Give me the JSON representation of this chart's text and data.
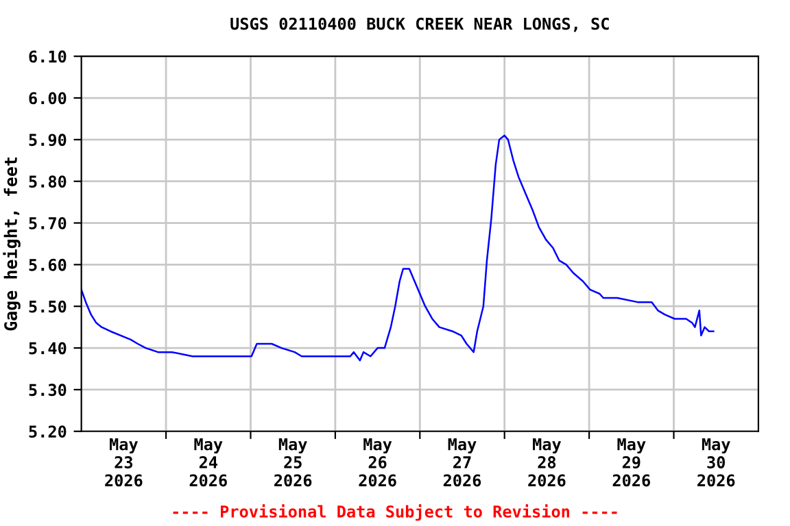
{
  "chart_data": {
    "type": "line",
    "title": "USGS 02110400 BUCK CREEK NEAR LONGS, SC",
    "ylabel": "Gage height, feet",
    "annotations": [
      "---- Provisional Data Subject to Revision ----"
    ],
    "x": [
      "2026-05-23T00:00",
      "2026-05-23T01:15",
      "2026-05-23T02:45",
      "2026-05-23T04:15",
      "2026-05-23T05:45",
      "2026-05-23T08:15",
      "2026-05-23T14:00",
      "2026-05-23T16:00",
      "2026-05-23T18:15",
      "2026-05-23T21:45",
      "2026-05-24T01:45",
      "2026-05-24T07:30",
      "2026-05-24T11:30",
      "2026-05-24T15:15",
      "2026-05-24T19:00",
      "2026-05-25T00:15",
      "2026-05-25T01:45",
      "2026-05-25T03:45",
      "2026-05-25T06:00",
      "2026-05-25T08:45",
      "2026-05-25T12:30",
      "2026-05-25T14:30",
      "2026-05-25T18:30",
      "2026-05-26T00:15",
      "2026-05-26T02:15",
      "2026-05-26T04:15",
      "2026-05-26T05:15",
      "2026-05-26T07:00",
      "2026-05-26T08:00",
      "2026-05-26T10:00",
      "2026-05-26T12:00",
      "2026-05-26T14:00",
      "2026-05-26T15:45",
      "2026-05-26T17:00",
      "2026-05-26T18:15",
      "2026-05-26T19:15",
      "2026-05-26T21:00",
      "2026-05-26T22:30",
      "2026-05-27T00:00",
      "2026-05-27T01:30",
      "2026-05-27T03:30",
      "2026-05-27T05:30",
      "2026-05-27T09:15",
      "2026-05-27T11:45",
      "2026-05-27T13:15",
      "2026-05-27T15:15",
      "2026-05-27T16:15",
      "2026-05-27T18:00",
      "2026-05-27T19:00",
      "2026-05-27T20:15",
      "2026-05-27T21:30",
      "2026-05-27T22:30",
      "2026-05-28T00:00",
      "2026-05-28T01:00",
      "2026-05-28T02:30",
      "2026-05-28T04:00",
      "2026-05-28T06:00",
      "2026-05-28T08:00",
      "2026-05-28T09:45",
      "2026-05-28T11:45",
      "2026-05-28T13:45",
      "2026-05-28T15:30",
      "2026-05-28T17:30",
      "2026-05-28T19:30",
      "2026-05-28T22:15",
      "2026-05-29T00:15",
      "2026-05-29T03:00",
      "2026-05-29T04:00",
      "2026-05-29T08:00",
      "2026-05-29T13:45",
      "2026-05-29T17:45",
      "2026-05-29T19:30",
      "2026-05-29T21:30",
      "2026-05-30T00:15",
      "2026-05-30T03:30",
      "2026-05-30T05:15",
      "2026-05-30T06:00",
      "2026-05-30T07:15",
      "2026-05-30T07:45",
      "2026-05-30T08:45",
      "2026-05-30T10:00",
      "2026-05-30T11:15"
    ],
    "series": [
      {
        "color": "#0000ff",
        "values": [
          5.54,
          5.51,
          5.48,
          5.46,
          5.45,
          5.44,
          5.42,
          5.41,
          5.4,
          5.39,
          5.39,
          5.38,
          5.38,
          5.38,
          5.38,
          5.38,
          5.41,
          5.41,
          5.41,
          5.4,
          5.39,
          5.38,
          5.38,
          5.38,
          5.38,
          5.38,
          5.39,
          5.37,
          5.39,
          5.38,
          5.4,
          5.4,
          5.45,
          5.5,
          5.56,
          5.59,
          5.59,
          5.56,
          5.53,
          5.5,
          5.47,
          5.45,
          5.44,
          5.43,
          5.41,
          5.39,
          5.44,
          5.5,
          5.61,
          5.71,
          5.84,
          5.9,
          5.91,
          5.9,
          5.85,
          5.81,
          5.77,
          5.73,
          5.69,
          5.66,
          5.64,
          5.61,
          5.6,
          5.58,
          5.56,
          5.54,
          5.53,
          5.52,
          5.52,
          5.51,
          5.51,
          5.49,
          5.48,
          5.47,
          5.47,
          5.46,
          5.45,
          5.49,
          5.43,
          5.45,
          5.44,
          5.44
        ]
      }
    ],
    "xlim": [
      "2026-05-23T00:00",
      "2026-05-31T00:00"
    ],
    "xticks": [
      {
        "value": "2026-05-23T12:00",
        "label": "May\n23\n2026"
      },
      {
        "value": "2026-05-24T12:00",
        "label": "May\n24\n2026"
      },
      {
        "value": "2026-05-25T12:00",
        "label": "May\n25\n2026"
      },
      {
        "value": "2026-05-26T12:00",
        "label": "May\n26\n2026"
      },
      {
        "value": "2026-05-27T12:00",
        "label": "May\n27\n2026"
      },
      {
        "value": "2026-05-28T12:00",
        "label": "May\n28\n2026"
      },
      {
        "value": "2026-05-29T12:00",
        "label": "May\n29\n2026"
      },
      {
        "value": "2026-05-30T12:00",
        "label": "May\n30\n2026"
      },
      {
        "value": "2026-05-24T00:00",
        "label": null
      },
      {
        "value": "2026-05-25T00:00",
        "label": null
      },
      {
        "value": "2026-05-26T00:00",
        "label": null
      },
      {
        "value": "2026-05-27T00:00",
        "label": null
      },
      {
        "value": "2026-05-28T00:00",
        "label": null
      },
      {
        "value": "2026-05-29T00:00",
        "label": null
      },
      {
        "value": "2026-05-30T00:00",
        "label": null
      }
    ],
    "ylim": [
      5.2,
      6.1
    ],
    "yticks": [
      {
        "value": 5.2,
        "label": "5.20"
      },
      {
        "value": 5.3,
        "label": "5.30"
      },
      {
        "value": 5.4,
        "label": "5.40"
      },
      {
        "value": 5.5,
        "label": "5.50"
      },
      {
        "value": 5.6,
        "label": "5.60"
      },
      {
        "value": 5.7,
        "label": "5.70"
      },
      {
        "value": 5.8,
        "label": "5.80"
      },
      {
        "value": 5.9,
        "label": "5.90"
      },
      {
        "value": 6.0,
        "label": "6.00"
      },
      {
        "value": 6.1,
        "label": "6.10"
      }
    ],
    "grid": true,
    "line_style": "solid",
    "marker": "none",
    "legend": false
  }
}
